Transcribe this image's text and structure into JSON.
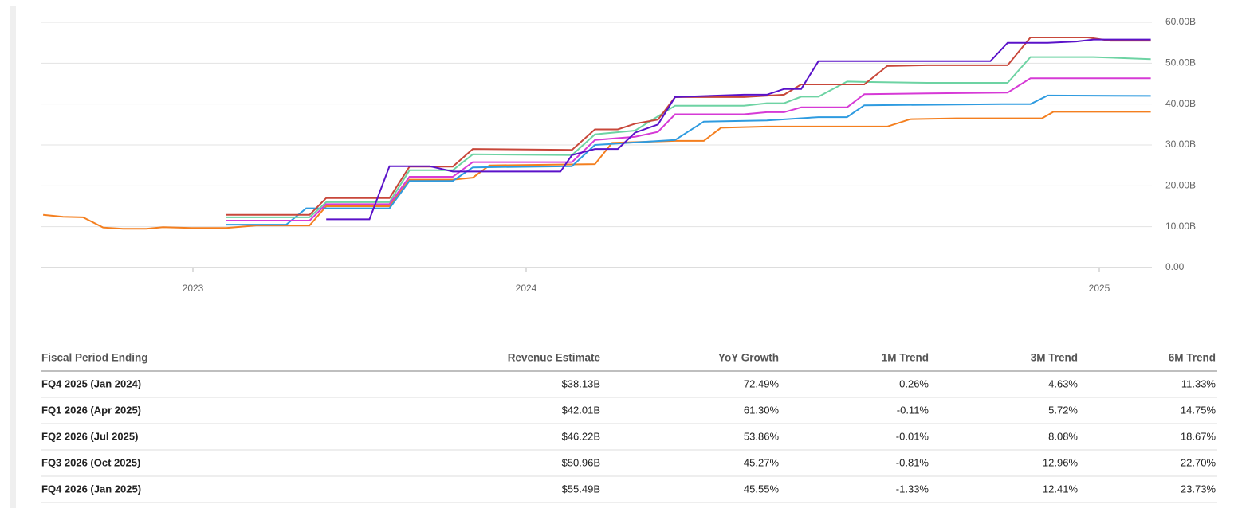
{
  "chart_data": {
    "type": "line",
    "xlim": [
      2022.545,
      2025.092
    ],
    "xticks": [
      2023,
      2024,
      2025
    ],
    "ylim": [
      0,
      60
    ],
    "yticks": [
      {
        "value": 0,
        "label": "0.00"
      },
      {
        "value": 10,
        "label": "10.00B"
      },
      {
        "value": 20,
        "label": "20.00B"
      },
      {
        "value": 30,
        "label": "30.00B"
      },
      {
        "value": 40,
        "label": "40.00B"
      },
      {
        "value": 50,
        "label": "50.00B"
      },
      {
        "value": 60,
        "label": "60.00B"
      }
    ],
    "grid": true,
    "series": [
      {
        "color": "#f47f1f",
        "x": [
          2022.55,
          2022.61,
          2022.67,
          2022.73,
          2022.79,
          2022.86,
          2022.91,
          2022.995,
          2023.1,
          2023.19,
          2023.35,
          2023.4,
          2023.59,
          2023.65,
          2023.78,
          2023.84,
          2023.89,
          2024.12,
          2024.15,
          2024.26,
          2024.31,
          2024.34,
          2024.42,
          2024.63,
          2024.67,
          2024.75,
          2024.9,
          2024.92,
          2025.09
        ],
        "values": [
          12.9,
          12.4,
          12.3,
          9.8,
          9.5,
          9.5,
          9.9,
          9.7,
          9.7,
          10.3,
          10.3,
          15.0,
          15.0,
          21.5,
          21.5,
          22.0,
          25.0,
          25.3,
          30.5,
          31.0,
          31.0,
          34.2,
          34.5,
          34.5,
          36.3,
          36.5,
          36.5,
          38.1,
          38.1
        ]
      },
      {
        "color": "#2e9be0",
        "x": [
          2023.1,
          2023.28,
          2023.34,
          2023.59,
          2023.65,
          2023.78,
          2023.84,
          2024.08,
          2024.12,
          2024.26,
          2024.31,
          2024.42,
          2024.51,
          2024.56,
          2024.59,
          2024.83,
          2024.88,
          2024.91,
          2025.09
        ],
        "values": [
          10.5,
          10.5,
          14.5,
          14.5,
          21.2,
          21.2,
          24.5,
          24.8,
          30.0,
          31.2,
          35.7,
          36.0,
          36.8,
          36.8,
          39.7,
          40.0,
          40.0,
          42.1,
          42.0
        ]
      },
      {
        "color": "#6dd3a3",
        "x": [
          2023.1,
          2023.35,
          2023.4,
          2023.59,
          2023.65,
          2023.78,
          2023.84,
          2024.08,
          2024.12,
          2024.19,
          2024.26,
          2024.38,
          2024.42,
          2024.45,
          2024.48,
          2024.51,
          2024.56,
          2024.59,
          2024.7,
          2024.84,
          2024.88,
          2024.99,
          2025.09
        ],
        "values": [
          12.3,
          12.3,
          16.0,
          16.0,
          23.8,
          23.8,
          27.7,
          27.5,
          32.6,
          33.5,
          39.6,
          39.6,
          40.2,
          40.2,
          41.8,
          41.8,
          45.5,
          45.4,
          45.2,
          45.2,
          51.5,
          51.5,
          51.0
        ]
      },
      {
        "color": "#d63ad6",
        "x": [
          2023.1,
          2023.35,
          2023.4,
          2023.59,
          2023.65,
          2023.78,
          2023.84,
          2024.08,
          2024.12,
          2024.19,
          2024.23,
          2024.26,
          2024.38,
          2024.42,
          2024.45,
          2024.48,
          2024.56,
          2024.59,
          2024.7,
          2024.84,
          2024.88,
          2025.09
        ],
        "values": [
          11.5,
          11.5,
          15.5,
          15.5,
          22.2,
          22.2,
          25.8,
          25.8,
          31.2,
          32.0,
          33.2,
          37.5,
          37.5,
          38.0,
          38.0,
          39.2,
          39.2,
          42.4,
          42.6,
          42.8,
          46.3,
          46.3
        ]
      },
      {
        "color": "#c8473a",
        "x": [
          2023.1,
          2023.35,
          2023.4,
          2023.59,
          2023.65,
          2023.78,
          2023.84,
          2024.08,
          2024.12,
          2024.16,
          2024.19,
          2024.23,
          2024.26,
          2024.38,
          2024.45,
          2024.48,
          2024.59,
          2024.63,
          2024.7,
          2024.84,
          2024.88,
          2024.98,
          2025.02,
          2025.09
        ],
        "values": [
          12.9,
          12.9,
          17.0,
          17.0,
          24.7,
          24.7,
          29.0,
          28.8,
          33.8,
          33.8,
          35.2,
          36.2,
          41.7,
          41.7,
          42.3,
          44.8,
          44.8,
          49.3,
          49.5,
          49.5,
          56.3,
          56.3,
          55.5,
          55.5
        ]
      },
      {
        "color": "#5a12c9",
        "x": [
          2023.4,
          2023.53,
          2023.59,
          2023.71,
          2023.78,
          2023.84,
          2024.06,
          2024.08,
          2024.12,
          2024.16,
          2024.19,
          2024.23,
          2024.26,
          2024.38,
          2024.42,
          2024.45,
          2024.48,
          2024.51,
          2024.81,
          2024.84,
          2024.91,
          2024.96,
          2024.99,
          2025.09
        ],
        "values": [
          11.8,
          11.8,
          24.8,
          24.8,
          23.5,
          23.5,
          23.5,
          27.5,
          29.0,
          29.0,
          33.0,
          35.0,
          41.7,
          42.3,
          42.3,
          43.7,
          43.7,
          50.5,
          50.5,
          55.0,
          55.0,
          55.3,
          55.8,
          55.8
        ]
      }
    ]
  },
  "table": {
    "header": [
      "Fiscal Period Ending",
      "Revenue Estimate",
      "YoY Growth",
      "1M Trend",
      "3M Trend",
      "6M Trend"
    ],
    "rows": [
      [
        "FQ4 2025 (Jan 2024)",
        "$38.13B",
        "72.49%",
        "0.26%",
        "4.63%",
        "11.33%"
      ],
      [
        "FQ1 2026 (Apr 2025)",
        "$42.01B",
        "61.30%",
        "-0.11%",
        "5.72%",
        "14.75%"
      ],
      [
        "FQ2 2026 (Jul 2025)",
        "$46.22B",
        "53.86%",
        "-0.01%",
        "8.08%",
        "18.67%"
      ],
      [
        "FQ3 2026 (Oct 2025)",
        "$50.96B",
        "45.27%",
        "-0.81%",
        "12.96%",
        "22.70%"
      ],
      [
        "FQ4 2026 (Jan 2025)",
        "$55.49B",
        "45.55%",
        "-1.33%",
        "12.41%",
        "23.73%"
      ]
    ]
  }
}
